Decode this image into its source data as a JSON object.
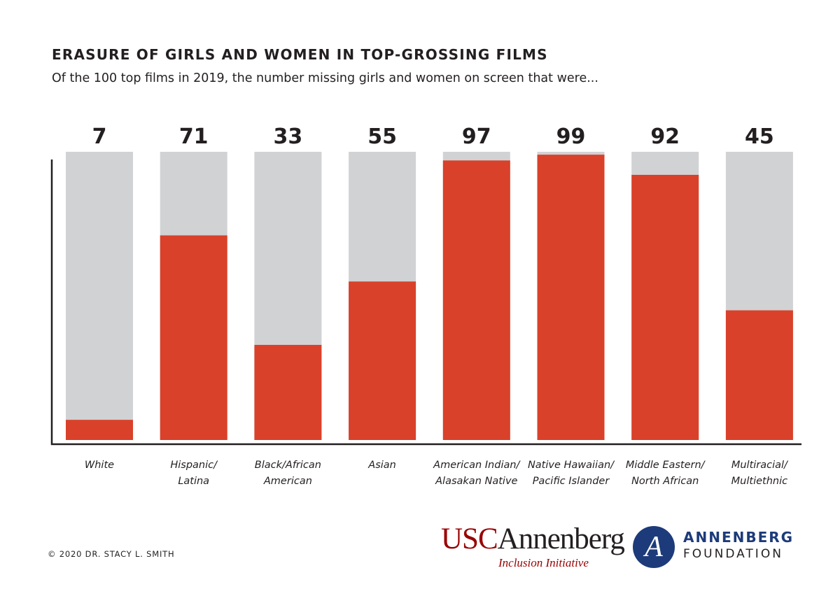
{
  "header": {
    "title": "ERASURE OF GIRLS AND WOMEN IN TOP-GROSSING FILMS",
    "subtitle": "Of the 100 top films in 2019, the number missing girls and women on screen that were..."
  },
  "chart_data": {
    "type": "bar",
    "stacked_total": 100,
    "categories": [
      [
        "White"
      ],
      [
        "Hispanic/",
        "Latina"
      ],
      [
        "Black/African",
        "American"
      ],
      [
        "Asian"
      ],
      [
        "American Indian/",
        "Alasakan Native"
      ],
      [
        "Native Hawaiian/",
        "Pacific Islander"
      ],
      [
        "Middle Eastern/",
        "North African"
      ],
      [
        "Multiracial/",
        "Multiethnic"
      ]
    ],
    "values": [
      7,
      71,
      33,
      55,
      97,
      99,
      92,
      45
    ],
    "ylim": [
      0,
      100
    ],
    "colors": {
      "value": "#d9412a",
      "remainder": "#d1d2d4",
      "axis": "#231f20"
    },
    "grid": false
  },
  "footer": {
    "copyright": "© 2020 DR. STACY L. SMITH",
    "usc_logo": {
      "part1": "USC",
      "part2": "Annenberg",
      "sub": "Inclusion Initiative"
    },
    "foundation_logo": {
      "mark": "A",
      "name": "ANNENBERG",
      "sub": "FOUNDATION",
      "color": "#1d3b7a"
    }
  }
}
